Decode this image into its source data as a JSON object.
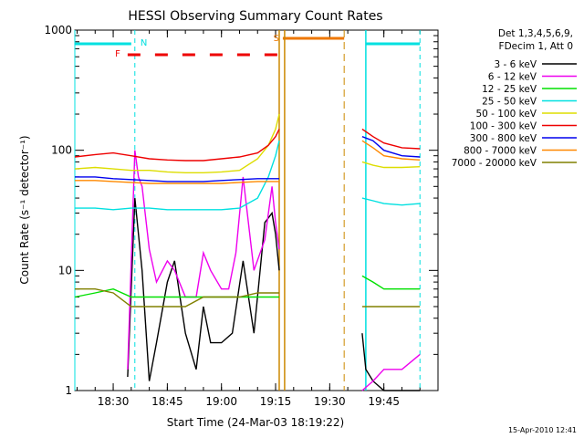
{
  "chart_data": {
    "type": "line",
    "title": "HESSI Observing Summary Count Rates",
    "xlabel": "Start Time (24-Mar-03 18:19:22)",
    "ylabel": "Count Rate (s⁻¹ detector⁻¹)",
    "y_scale": "log",
    "ylim": [
      1,
      1000
    ],
    "xlim": [
      "18:19:22",
      "20:00:00"
    ],
    "x_ticks": [
      "18:30",
      "18:45",
      "19:00",
      "19:15",
      "19:30",
      "19:45"
    ],
    "y_ticks": [
      "1",
      "10",
      "100",
      "1000"
    ],
    "grid": false,
    "legend_position": "right",
    "legend_header": [
      "Det 1,3,4,5,6,9,",
      "FDecim 1, Att 0"
    ],
    "flags": {
      "N_label": "N",
      "F_label": "F",
      "S_label": "S",
      "N_color": "#00e0e0",
      "F_color": "#ee0000",
      "S_color": "#ee7700",
      "N_periods": [
        [
          "18:19:22",
          "18:35:00"
        ],
        [
          "19:40:00",
          "19:55:00"
        ]
      ],
      "F_periods": [
        [
          "18:34:00",
          "19:16:00"
        ]
      ],
      "S_periods": [
        [
          "19:17:00",
          "19:34:00"
        ]
      ],
      "night_start": [
        [
          "18:36:00"
        ],
        [
          "19:55:00"
        ]
      ],
      "night_end": [
        [
          "19:34:00"
        ]
      ],
      "saa_boundaries": [
        "19:16:00",
        "19:17:30",
        "19:39:00"
      ]
    },
    "series": [
      {
        "name": "3 - 6 keV",
        "color": "#000000",
        "x": [
          "18:19:22",
          "18:25",
          "18:30",
          "18:34",
          "18:36",
          "18:38",
          "18:40",
          "18:42",
          "18:45",
          "18:47",
          "18:50",
          "18:53",
          "18:55",
          "18:57",
          "19:00",
          "19:03",
          "19:06",
          "19:09",
          "19:12",
          "19:14",
          "19:15",
          "19:16",
          "19:37",
          "19:39",
          "19:40",
          "19:42",
          "19:45",
          "19:50",
          "19:55"
        ],
        "y": [
          null,
          null,
          null,
          1.3,
          40,
          10,
          1.2,
          2.5,
          8,
          12,
          3,
          1.5,
          5,
          2.5,
          2.5,
          3,
          12,
          3,
          25,
          30,
          20,
          10,
          null,
          3,
          1.5,
          1.2,
          1,
          1,
          1
        ]
      },
      {
        "name": "6 - 12 keV",
        "color": "#ee00ee",
        "x": [
          "18:19:22",
          "18:30",
          "18:34",
          "18:36",
          "18:37",
          "18:38",
          "18:40",
          "18:42",
          "18:45",
          "18:47",
          "18:50",
          "18:53",
          "18:55",
          "18:57",
          "19:00",
          "19:02",
          "19:04",
          "19:06",
          "19:09",
          "19:12",
          "19:14",
          "19:15",
          "19:16",
          "19:37",
          "19:39",
          "19:42",
          "19:45",
          "19:50",
          "19:55"
        ],
        "y": [
          null,
          null,
          1.5,
          100,
          60,
          50,
          15,
          8,
          12,
          10,
          6,
          6,
          14,
          10,
          7,
          7,
          14,
          60,
          10,
          18,
          50,
          25,
          15,
          null,
          1,
          1.2,
          1.5,
          1.5,
          2
        ]
      },
      {
        "name": "12 - 25 keV",
        "color": "#00e000",
        "x": [
          "18:19:22",
          "18:25",
          "18:30",
          "18:35",
          "18:40",
          "18:45",
          "18:50",
          "18:55",
          "19:00",
          "19:05",
          "19:10",
          "19:15",
          "19:16",
          "19:37",
          "19:39",
          "19:42",
          "19:45",
          "19:50",
          "19:55"
        ],
        "y": [
          6,
          6.5,
          7,
          6,
          6,
          6,
          6,
          6,
          6,
          6,
          6,
          6,
          6,
          null,
          9,
          8,
          7,
          7,
          7
        ]
      },
      {
        "name": "25 - 50 keV",
        "color": "#00e0e0",
        "x": [
          "18:19:22",
          "18:25",
          "18:30",
          "18:35",
          "18:40",
          "18:45",
          "18:50",
          "18:55",
          "19:00",
          "19:05",
          "19:10",
          "19:13",
          "19:15",
          "19:16",
          "19:37",
          "19:39",
          "19:42",
          "19:45",
          "19:50",
          "19:55"
        ],
        "y": [
          33,
          33,
          32,
          33,
          33,
          32,
          32,
          32,
          32,
          33,
          40,
          60,
          90,
          120,
          null,
          40,
          38,
          36,
          35,
          36
        ]
      },
      {
        "name": "50 - 100 keV",
        "color": "#dddd00",
        "x": [
          "18:19:22",
          "18:25",
          "18:30",
          "18:35",
          "18:40",
          "18:45",
          "18:50",
          "18:55",
          "19:00",
          "19:05",
          "19:10",
          "19:13",
          "19:15",
          "19:16",
          "19:37",
          "19:39",
          "19:42",
          "19:45",
          "19:50",
          "19:55"
        ],
        "y": [
          70,
          72,
          70,
          68,
          68,
          66,
          65,
          65,
          66,
          68,
          85,
          110,
          150,
          200,
          null,
          80,
          75,
          72,
          72,
          73
        ]
      },
      {
        "name": "100 - 300 keV",
        "color": "#ee0000",
        "x": [
          "18:19:22",
          "18:25",
          "18:30",
          "18:35",
          "18:40",
          "18:45",
          "18:50",
          "18:55",
          "19:00",
          "19:05",
          "19:10",
          "19:13",
          "19:15",
          "19:16",
          "19:37",
          "19:39",
          "19:42",
          "19:45",
          "19:50",
          "19:55"
        ],
        "y": [
          88,
          92,
          95,
          90,
          85,
          83,
          82,
          82,
          85,
          88,
          95,
          110,
          130,
          150,
          null,
          150,
          130,
          115,
          105,
          103
        ]
      },
      {
        "name": "300 - 800 keV",
        "color": "#0000ee",
        "x": [
          "18:19:22",
          "18:25",
          "18:30",
          "18:35",
          "18:40",
          "18:45",
          "18:50",
          "18:55",
          "19:00",
          "19:05",
          "19:10",
          "19:15",
          "19:16",
          "19:37",
          "19:39",
          "19:42",
          "19:45",
          "19:50",
          "19:55"
        ],
        "y": [
          60,
          60,
          58,
          57,
          56,
          55,
          55,
          55,
          56,
          57,
          58,
          58,
          58,
          null,
          130,
          120,
          100,
          90,
          88
        ]
      },
      {
        "name": "800 - 7000 keV",
        "color": "#ff8800",
        "x": [
          "18:19:22",
          "18:25",
          "18:30",
          "18:35",
          "18:40",
          "18:45",
          "18:50",
          "18:55",
          "19:00",
          "19:05",
          "19:10",
          "19:15",
          "19:16",
          "19:37",
          "19:39",
          "19:42",
          "19:45",
          "19:50",
          "19:55"
        ],
        "y": [
          56,
          56,
          55,
          54,
          53,
          53,
          53,
          53,
          53,
          54,
          55,
          55,
          55,
          null,
          120,
          105,
          90,
          85,
          83
        ]
      },
      {
        "name": "7000 - 20000 keV",
        "color": "#808000",
        "x": [
          "18:19:22",
          "18:25",
          "18:30",
          "18:35",
          "18:40",
          "18:45",
          "18:50",
          "18:55",
          "19:00",
          "19:05",
          "19:10",
          "19:15",
          "19:16",
          "19:37",
          "19:39",
          "19:42",
          "19:45",
          "19:50",
          "19:55"
        ],
        "y": [
          7,
          7,
          6.5,
          5,
          5,
          5,
          5,
          6,
          6,
          6,
          6.5,
          6.5,
          6.5,
          null,
          5,
          5,
          5,
          5,
          5
        ]
      }
    ]
  },
  "footer": {
    "timestamp": "15-Apr-2010 12:41"
  }
}
